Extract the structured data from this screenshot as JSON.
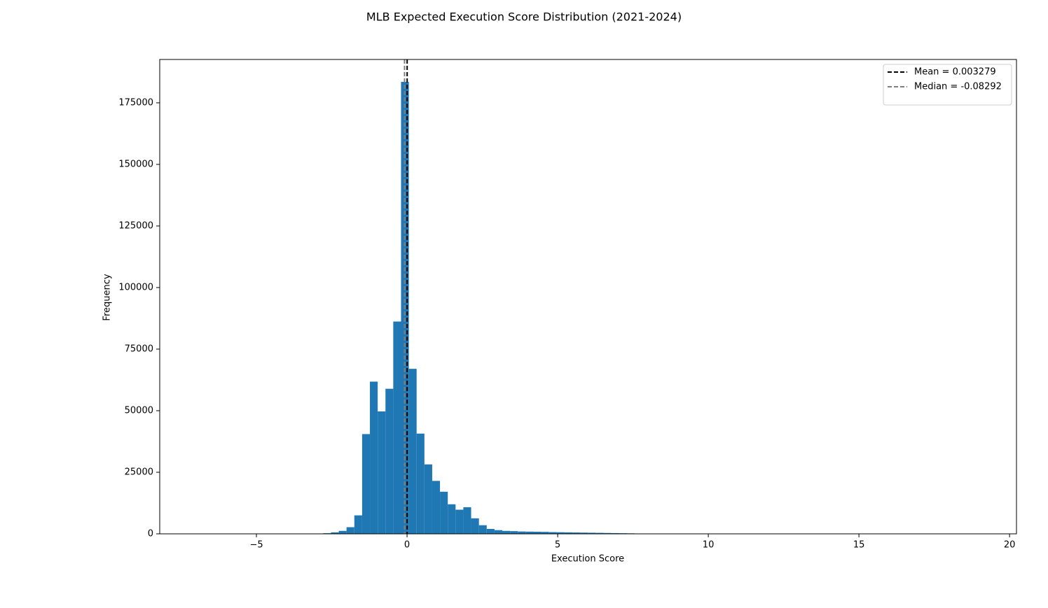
{
  "chart_data": {
    "type": "histogram",
    "title": "MLB Expected Execution Score Distribution (2021-2024)",
    "x_label": "Execution Score",
    "y_label": "Frequency",
    "color": "#1f77b4",
    "bins": [
      -6.92,
      -6.6615,
      -6.403,
      -6.1445,
      -5.886,
      -5.6275,
      -5.369,
      -5.1105,
      -4.852,
      -4.5935,
      -4.335,
      -4.0765,
      -3.818,
      -3.5595,
      -3.301,
      -3.0425,
      -2.784,
      -2.5255,
      -2.267,
      -2.0085,
      -1.75,
      -1.4915,
      -1.233,
      -0.9745,
      -0.716,
      -0.4575,
      -0.199,
      0.0595,
      0.318,
      0.5765,
      0.835,
      1.0935,
      1.352,
      1.6105,
      1.869,
      2.1275,
      2.386,
      2.6445,
      2.903,
      3.1615,
      3.42,
      3.6785,
      3.937,
      4.1955,
      4.454,
      4.7125,
      4.971,
      5.2295,
      5.488,
      5.7465,
      6.005,
      6.2635,
      6.522,
      6.7805,
      7.039,
      7.2975,
      7.556,
      7.8145,
      8.073,
      8.3315,
      8.59,
      8.8485,
      9.107,
      9.3655,
      9.624,
      9.8825,
      10.141,
      10.3995,
      10.658,
      10.9165,
      11.175,
      11.4335,
      11.692,
      11.9505,
      12.209,
      12.4675,
      12.726,
      12.9845,
      13.243,
      13.5015,
      13.76,
      14.0185,
      14.277,
      14.5355,
      14.794,
      15.0525,
      15.311,
      15.5695,
      15.828,
      16.0865,
      16.345,
      16.6035,
      16.862,
      17.1205,
      17.379,
      17.6375,
      17.896,
      18.1545,
      18.413,
      18.6715,
      18.93
    ],
    "values": [
      1,
      0,
      0,
      0,
      0,
      1,
      0,
      2,
      3,
      5,
      8,
      12,
      20,
      35,
      60,
      110,
      250,
      600,
      1200,
      2700,
      7500,
      40500,
      61800,
      49700,
      58900,
      86200,
      183500,
      67000,
      40700,
      28200,
      21500,
      17100,
      12000,
      9800,
      10800,
      6300,
      3500,
      2000,
      1500,
      1200,
      1100,
      950,
      900,
      850,
      800,
      700,
      650,
      600,
      550,
      500,
      450,
      400,
      350,
      300,
      250,
      200,
      80,
      40,
      25,
      15,
      10,
      8,
      6,
      5,
      4,
      3,
      3,
      2,
      2,
      2,
      1,
      1,
      1,
      1,
      1,
      0,
      1,
      0,
      0,
      1,
      0,
      0,
      0,
      1,
      0,
      0,
      0,
      0,
      0,
      1,
      0,
      0,
      0,
      0,
      0,
      0,
      0,
      0,
      0,
      1
    ],
    "lines": [
      {
        "name": "Mean = 0.003279",
        "value": 0.003279,
        "color": "#000000"
      },
      {
        "name": "Median = -0.08292",
        "value": -0.08292,
        "color": "#7f7f7f"
      }
    ],
    "legend": "upper right",
    "xlim": [
      -8.21,
      20.23
    ],
    "xticks": [
      {
        "value": -5,
        "label": "−5"
      },
      0,
      5,
      10,
      15,
      20
    ],
    "ylim": [
      0,
      192600
    ],
    "yticks": [
      0,
      25000,
      50000,
      75000,
      100000,
      125000,
      150000,
      175000
    ]
  }
}
